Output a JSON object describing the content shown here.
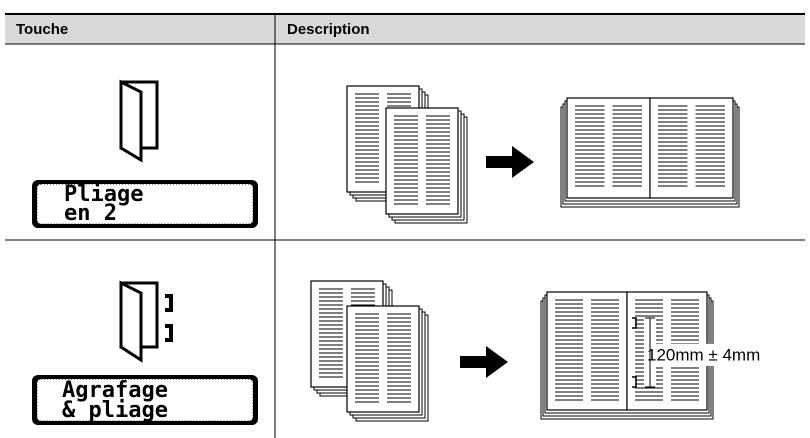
{
  "table": {
    "header": [
      "Touche",
      "Description"
    ],
    "rows": [
      {
        "key_lines": [
          "Pliage",
          "en 2"
        ]
      },
      {
        "key_lines": [
          "Agrafage",
          "& pliage"
        ],
        "annotation": "120mm ± 4mm"
      }
    ]
  }
}
